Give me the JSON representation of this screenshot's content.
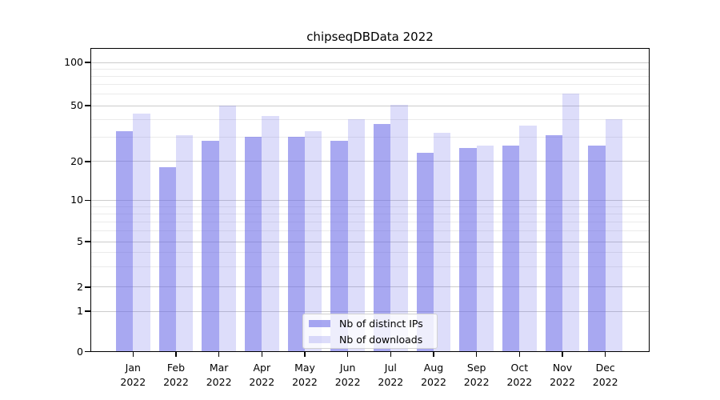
{
  "title": "chipseqDBData 2022",
  "chart_data": {
    "type": "bar",
    "title": "chipseqDBData 2022",
    "categories": [
      "Jan",
      "Feb",
      "Mar",
      "Apr",
      "May",
      "Jun",
      "Jul",
      "Aug",
      "Sep",
      "Oct",
      "Nov",
      "Dec"
    ],
    "year_label": "2022",
    "series": [
      {
        "name": "Nb of distinct IPs",
        "values": [
          33,
          18,
          28,
          30,
          30,
          28,
          37,
          23,
          25,
          26,
          31,
          26
        ],
        "color": "rgba(99,99,230,0.56)"
      },
      {
        "name": "Nb of downloads",
        "values": [
          44,
          31,
          50,
          42,
          33,
          40,
          51,
          32,
          26,
          36,
          61,
          40
        ],
        "color": "rgba(99,99,230,0.22)"
      }
    ],
    "yscale": "symlog",
    "ylim": [
      0,
      125
    ],
    "yticks": [
      0,
      1,
      2,
      5,
      10,
      20,
      50,
      100
    ],
    "minor_yticks": [
      3,
      4,
      6,
      7,
      8,
      9,
      30,
      40,
      60,
      70,
      80,
      90
    ],
    "grid": true,
    "legend_position": "lower-center"
  },
  "colors": {
    "bar_base": "#6363e6",
    "grid_major": "#cccccc",
    "grid_minor": "#ebebeb",
    "axis": "#000000",
    "legend_border": "#d2d2d2",
    "background": "#ffffff"
  }
}
